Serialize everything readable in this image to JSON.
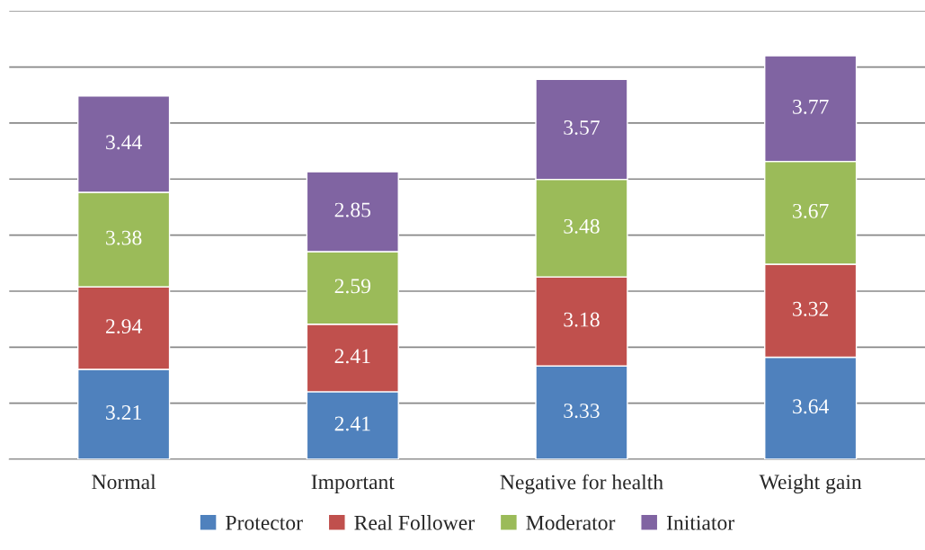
{
  "chart_data": {
    "type": "bar",
    "stacked": true,
    "categories": [
      "Normal",
      "Important",
      "Negative for health",
      "Weight gain"
    ],
    "series": [
      {
        "name": "Protector",
        "color": "#4f81bd",
        "values": [
          3.21,
          2.41,
          3.33,
          3.64
        ]
      },
      {
        "name": "Real Follower",
        "color": "#c0504d",
        "values": [
          2.94,
          2.41,
          3.18,
          3.32
        ]
      },
      {
        "name": "Moderator",
        "color": "#9bbb59",
        "values": [
          3.38,
          2.59,
          3.48,
          3.67
        ]
      },
      {
        "name": "Initiator",
        "color": "#8064a2",
        "values": [
          3.44,
          2.85,
          3.57,
          3.77
        ]
      }
    ],
    "ylim": [
      0,
      16
    ],
    "yticks": [
      {
        "value": 0,
        "label": null
      },
      {
        "value": 2,
        "label": null
      },
      {
        "value": 4,
        "label": null
      },
      {
        "value": 6,
        "label": null
      },
      {
        "value": 8,
        "label": null
      },
      {
        "value": 10,
        "label": null
      },
      {
        "value": 12,
        "label": null
      },
      {
        "value": 14,
        "label": null
      },
      {
        "value": 16,
        "label": null
      }
    ],
    "grid": "y",
    "legend": "bottom",
    "data_labels": true,
    "tick_labels": "x"
  }
}
